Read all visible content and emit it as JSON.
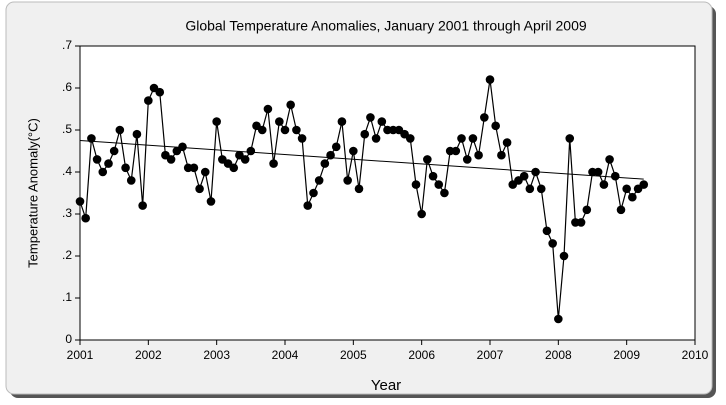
{
  "chart_data": {
    "type": "line",
    "title": "Global Temperature Anomalies, January 2001 through April 2009",
    "x_label": "Year",
    "y_label": "Temperature Anomaly(°C)",
    "x": [
      2001,
      2001.083,
      2001.167,
      2001.25,
      2001.333,
      2001.417,
      2001.5,
      2001.583,
      2001.667,
      2001.75,
      2001.833,
      2001.917,
      2002,
      2002.083,
      2002.167,
      2002.25,
      2002.333,
      2002.417,
      2002.5,
      2002.583,
      2002.667,
      2002.75,
      2002.833,
      2002.917,
      2003,
      2003.083,
      2003.167,
      2003.25,
      2003.333,
      2003.417,
      2003.5,
      2003.583,
      2003.667,
      2003.75,
      2003.833,
      2003.917,
      2004,
      2004.083,
      2004.167,
      2004.25,
      2004.333,
      2004.417,
      2004.5,
      2004.583,
      2004.667,
      2004.75,
      2004.833,
      2004.917,
      2005,
      2005.083,
      2005.167,
      2005.25,
      2005.333,
      2005.417,
      2005.5,
      2005.583,
      2005.667,
      2005.75,
      2005.833,
      2005.917,
      2006,
      2006.083,
      2006.167,
      2006.25,
      2006.333,
      2006.417,
      2006.5,
      2006.583,
      2006.667,
      2006.75,
      2006.833,
      2006.917,
      2007,
      2007.083,
      2007.167,
      2007.25,
      2007.333,
      2007.417,
      2007.5,
      2007.583,
      2007.667,
      2007.75,
      2007.833,
      2007.917,
      2008,
      2008.083,
      2008.167,
      2008.25,
      2008.333,
      2008.417,
      2008.5,
      2008.583,
      2008.667,
      2008.75,
      2008.833,
      2008.917,
      2009,
      2009.083,
      2009.167,
      2009.25
    ],
    "series": [
      {
        "color": "#000000",
        "values": [
          0.33,
          0.29,
          0.48,
          0.43,
          0.4,
          0.42,
          0.45,
          0.5,
          0.41,
          0.38,
          0.49,
          0.32,
          0.57,
          0.6,
          0.59,
          0.44,
          0.43,
          0.45,
          0.46,
          0.41,
          0.41,
          0.36,
          0.4,
          0.33,
          0.52,
          0.43,
          0.42,
          0.41,
          0.44,
          0.43,
          0.45,
          0.51,
          0.5,
          0.55,
          0.42,
          0.52,
          0.5,
          0.56,
          0.5,
          0.48,
          0.32,
          0.35,
          0.38,
          0.42,
          0.44,
          0.46,
          0.52,
          0.38,
          0.45,
          0.36,
          0.49,
          0.53,
          0.48,
          0.52,
          0.5,
          0.5,
          0.5,
          0.49,
          0.48,
          0.37,
          0.3,
          0.43,
          0.39,
          0.37,
          0.35,
          0.45,
          0.45,
          0.48,
          0.43,
          0.48,
          0.44,
          0.53,
          0.62,
          0.51,
          0.44,
          0.47,
          0.37,
          0.38,
          0.39,
          0.36,
          0.4,
          0.36,
          0.26,
          0.23,
          0.05,
          0.2,
          0.48,
          0.28,
          0.28,
          0.31,
          0.4,
          0.4,
          0.37,
          0.43,
          0.39,
          0.31,
          0.36,
          0.34,
          0.36,
          0.37
        ]
      }
    ],
    "trend": {
      "x": [
        2001,
        2009.25
      ],
      "values": [
        0.475,
        0.383
      ]
    },
    "xlim": [
      2001,
      2010
    ],
    "xticks": [
      2001,
      2002,
      2003,
      2004,
      2005,
      2006,
      2007,
      2008,
      2009,
      2010
    ],
    "ylim": [
      0,
      0.7
    ],
    "yticks": [
      0,
      {
        "value": 0.1,
        "label": ".1"
      },
      {
        "value": 0.2,
        "label": ".2"
      },
      {
        "value": 0.3,
        "label": ".3"
      },
      {
        "value": 0.4,
        "label": ".4"
      },
      {
        "value": 0.5,
        "label": ".5"
      },
      {
        "value": 0.6,
        "label": ".6"
      },
      {
        "value": 0.7,
        "label": ".7"
      }
    ],
    "grid": false
  }
}
